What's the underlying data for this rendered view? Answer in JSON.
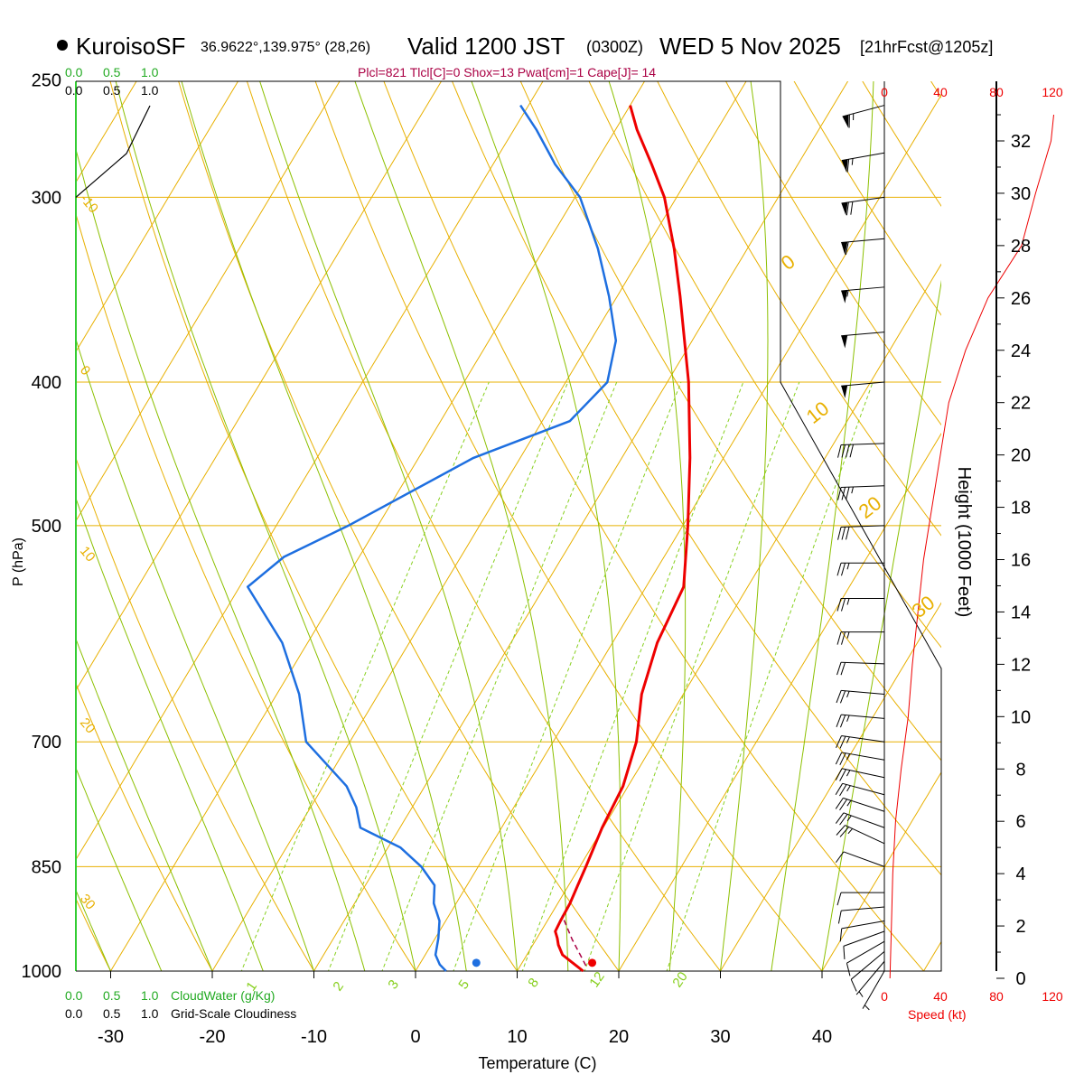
{
  "header": {
    "station": "KuroisoSF",
    "coords": "36.9622°,139.975° (28,26)",
    "valid_prefix": "Valid 1200 JST",
    "valid_utc": "(0300Z)",
    "valid_date": "WED 5 Nov 2025",
    "forecast": "[21hrFcst@1205z]"
  },
  "indices_line": "Plcl=821 Tlcl[C]=0 Shox=13 Pwat[cm]=1 Cape[J]= 14",
  "colors": {
    "isotherm": "#e8b000",
    "dry_adiabat": "#e8b000",
    "moist_adiabat": "#8cc000",
    "mixing_ratio": "#88d020",
    "temperature": "#ee0000",
    "dewpoint": "#1e6fe0",
    "cloud_bar": "#22aa22",
    "wind_speed": "#ee0000",
    "indices": "#aa0044"
  },
  "axes": {
    "ylabel": "P (hPa)",
    "xlabel": "Temperature (C)",
    "height_label": "Height (1000 Feet)",
    "pressure_ticks": [
      "250",
      "300",
      "400",
      "500",
      "700",
      "850",
      "1000"
    ],
    "temperature_ticks": [
      "-30",
      "-20",
      "-10",
      "0",
      "10",
      "20",
      "30",
      "40"
    ],
    "height_ticks": [
      "0",
      "2",
      "4",
      "6",
      "8",
      "10",
      "12",
      "14",
      "16",
      "18",
      "20",
      "22",
      "24",
      "26",
      "28",
      "30",
      "32"
    ]
  },
  "cloud_scales": {
    "top_green": [
      "0.0",
      "0.5",
      "1.0"
    ],
    "top_black": [
      "0.0",
      "0.5",
      "1.0"
    ],
    "bottom_green": [
      "0.0",
      "0.5",
      "1.0"
    ],
    "bottom_green_label": "CloudWater (g/Kg)",
    "bottom_black": [
      "0.0",
      "0.5",
      "1.0"
    ],
    "bottom_black_label": "Grid-Scale Cloudiness"
  },
  "wind_speed_axis": {
    "top": [
      "0",
      "40",
      "80",
      "120"
    ],
    "bottom": [
      "0",
      "40",
      "80",
      "120"
    ],
    "label": "Speed (kt)"
  },
  "adiabat_labels": {
    "dry_left": [
      "-10",
      "0",
      "10",
      "20",
      "30"
    ],
    "dry_right": [
      "0",
      "10",
      "20",
      "30"
    ],
    "mixing_ratio": [
      "1",
      "2",
      "3",
      "5",
      "8",
      "12",
      "20"
    ]
  },
  "chart_data": {
    "type": "skew-t",
    "title": "KuroisoSF Valid 1200 JST (0300Z) WED 5 Nov 2025",
    "xlabel": "Temperature (C)",
    "ylabel": "P (hPa)",
    "xlim": [
      -35,
      52
    ],
    "ylim": [
      1000,
      250
    ],
    "temperature": [
      {
        "p": 1000,
        "t": 16.5
      },
      {
        "p": 990,
        "t": 15.3
      },
      {
        "p": 975,
        "t": 13.5
      },
      {
        "p": 960,
        "t": 12.5
      },
      {
        "p": 950,
        "t": 12.0
      },
      {
        "p": 940,
        "t": 11.4
      },
      {
        "p": 925,
        "t": 11.3
      },
      {
        "p": 900,
        "t": 11.2
      },
      {
        "p": 875,
        "t": 10.9
      },
      {
        "p": 850,
        "t": 10.6
      },
      {
        "p": 800,
        "t": 9.9
      },
      {
        "p": 750,
        "t": 9.5
      },
      {
        "p": 700,
        "t": 8.2
      },
      {
        "p": 650,
        "t": 5.9
      },
      {
        "p": 600,
        "t": 4.4
      },
      {
        "p": 550,
        "t": 3.7
      },
      {
        "p": 500,
        "t": 0.5
      },
      {
        "p": 450,
        "t": -3.3
      },
      {
        "p": 400,
        "t": -7.9
      },
      {
        "p": 350,
        "t": -13.8
      },
      {
        "p": 325,
        "t": -17.2
      },
      {
        "p": 300,
        "t": -21.2
      },
      {
        "p": 285,
        "t": -24.4
      },
      {
        "p": 270,
        "t": -27.9
      },
      {
        "p": 260,
        "t": -30.0
      }
    ],
    "dewpoint": [
      {
        "p": 1000,
        "t": 3.0
      },
      {
        "p": 990,
        "t": 2.0
      },
      {
        "p": 975,
        "t": 1.0
      },
      {
        "p": 950,
        "t": 0.3
      },
      {
        "p": 925,
        "t": -0.6
      },
      {
        "p": 900,
        "t": -2.2
      },
      {
        "p": 875,
        "t": -3.2
      },
      {
        "p": 850,
        "t": -5.6
      },
      {
        "p": 825,
        "t": -8.8
      },
      {
        "p": 800,
        "t": -13.9
      },
      {
        "p": 775,
        "t": -15.5
      },
      {
        "p": 750,
        "t": -17.7
      },
      {
        "p": 700,
        "t": -24.3
      },
      {
        "p": 650,
        "t": -27.8
      },
      {
        "p": 600,
        "t": -32.5
      },
      {
        "p": 550,
        "t": -39.2
      },
      {
        "p": 525,
        "t": -37.4
      },
      {
        "p": 500,
        "t": -32.9
      },
      {
        "p": 450,
        "t": -24.6
      },
      {
        "p": 425,
        "t": -17.3
      },
      {
        "p": 400,
        "t": -15.9
      },
      {
        "p": 375,
        "t": -17.5
      },
      {
        "p": 350,
        "t": -20.8
      },
      {
        "p": 325,
        "t": -24.7
      },
      {
        "p": 300,
        "t": -29.5
      },
      {
        "p": 285,
        "t": -33.9
      },
      {
        "p": 270,
        "t": -37.8
      },
      {
        "p": 260,
        "t": -40.8
      }
    ],
    "parcel": [
      {
        "p": 1000,
        "t": 16.5
      },
      {
        "p": 960,
        "t": 13.6
      },
      {
        "p": 925,
        "t": 11.2
      }
    ],
    "surface_temperature": {
      "p": 1000,
      "t": 17.0
    },
    "surface_dewpoint": {
      "p": 1000,
      "t": 5.6
    },
    "wind_barbs": [
      {
        "p": 1000,
        "speed": 5,
        "dir": 330
      },
      {
        "p": 985,
        "speed": 5,
        "dir": 320
      },
      {
        "p": 970,
        "speed": 10,
        "dir": 310
      },
      {
        "p": 955,
        "speed": 10,
        "dir": 300
      },
      {
        "p": 940,
        "speed": 10,
        "dir": 290
      },
      {
        "p": 925,
        "speed": 10,
        "dir": 280
      },
      {
        "p": 905,
        "speed": 10,
        "dir": 275
      },
      {
        "p": 885,
        "speed": 10,
        "dir": 270
      },
      {
        "p": 850,
        "speed": 10,
        "dir": 250
      },
      {
        "p": 820,
        "speed": 25,
        "dir": 245
      },
      {
        "p": 800,
        "speed": 25,
        "dir": 250
      },
      {
        "p": 780,
        "speed": 25,
        "dir": 252
      },
      {
        "p": 760,
        "speed": 25,
        "dir": 255
      },
      {
        "p": 740,
        "speed": 25,
        "dir": 258
      },
      {
        "p": 720,
        "speed": 25,
        "dir": 260
      },
      {
        "p": 700,
        "speed": 25,
        "dir": 262
      },
      {
        "p": 675,
        "speed": 25,
        "dir": 265
      },
      {
        "p": 650,
        "speed": 25,
        "dir": 265
      },
      {
        "p": 620,
        "speed": 20,
        "dir": 268
      },
      {
        "p": 590,
        "speed": 25,
        "dir": 270
      },
      {
        "p": 560,
        "speed": 25,
        "dir": 270
      },
      {
        "p": 530,
        "speed": 25,
        "dir": 270
      },
      {
        "p": 500,
        "speed": 30,
        "dir": 272
      },
      {
        "p": 470,
        "speed": 35,
        "dir": 272
      },
      {
        "p": 440,
        "speed": 40,
        "dir": 272
      },
      {
        "p": 400,
        "speed": 50,
        "dir": 275
      },
      {
        "p": 370,
        "speed": 50,
        "dir": 275
      },
      {
        "p": 345,
        "speed": 55,
        "dir": 275
      },
      {
        "p": 320,
        "speed": 60,
        "dir": 275
      },
      {
        "p": 300,
        "speed": 70,
        "dir": 278
      },
      {
        "p": 280,
        "speed": 65,
        "dir": 280
      },
      {
        "p": 260,
        "speed": 65,
        "dir": 285
      }
    ],
    "wind_speed_profile": [
      {
        "h": 0,
        "s": 4
      },
      {
        "h": 2,
        "s": 5
      },
      {
        "h": 4,
        "s": 6
      },
      {
        "h": 6,
        "s": 8
      },
      {
        "h": 8,
        "s": 12
      },
      {
        "h": 10,
        "s": 17
      },
      {
        "h": 12,
        "s": 20
      },
      {
        "h": 14,
        "s": 24
      },
      {
        "h": 16,
        "s": 28
      },
      {
        "h": 18,
        "s": 34
      },
      {
        "h": 20,
        "s": 40
      },
      {
        "h": 22,
        "s": 46
      },
      {
        "h": 24,
        "s": 58
      },
      {
        "h": 26,
        "s": 74
      },
      {
        "h": 28,
        "s": 98
      },
      {
        "h": 30,
        "s": 108
      },
      {
        "h": 32,
        "s": 119
      },
      {
        "h": 33,
        "s": 121
      }
    ],
    "cloud_water_profile": [
      {
        "p": 300,
        "v": 0.0
      },
      {
        "p": 275,
        "v": 0.55
      },
      {
        "p": 260,
        "v": 0.85
      }
    ]
  }
}
